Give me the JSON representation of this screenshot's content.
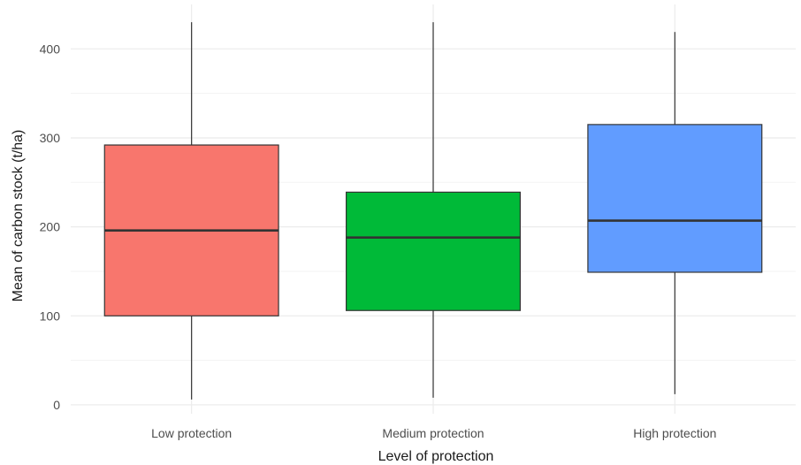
{
  "chart_data": {
    "type": "boxplot",
    "title": "",
    "xlabel": "Level of protection",
    "ylabel": "Mean of carbon stock (t/ha)",
    "ylim": [
      -10,
      450
    ],
    "yticks": [
      0,
      100,
      200,
      300,
      400
    ],
    "grid": true,
    "legend": "none",
    "categories": [
      "Low protection",
      "Medium protection",
      "High protection"
    ],
    "boxes": [
      {
        "category": "Low protection",
        "min": 6,
        "q1": 100,
        "median": 196,
        "q3": 292,
        "max": 430,
        "color": "#F8766D"
      },
      {
        "category": "Medium protection",
        "min": 8,
        "q1": 106,
        "median": 188,
        "q3": 239,
        "max": 430,
        "color": "#00BA38"
      },
      {
        "category": "High protection",
        "min": 12,
        "q1": 149,
        "median": 207,
        "q3": 315,
        "max": 419,
        "color": "#619CFF"
      }
    ]
  }
}
